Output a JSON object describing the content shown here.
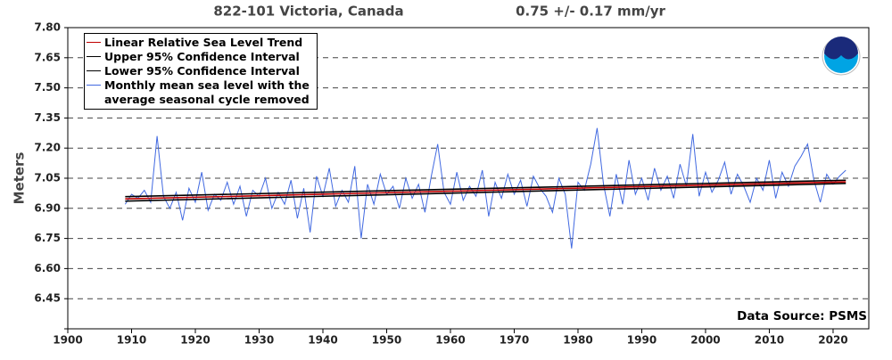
{
  "chart_data": {
    "type": "line",
    "title": "822-101 Victoria, Canada",
    "subtitle": "0.75 +/-  0.17 mm/yr",
    "y_label": "Meters",
    "annotation": "Data Source: PSMS",
    "xlim": [
      1900,
      2025.6
    ],
    "ylim": [
      6.3,
      7.8
    ],
    "xticks": [
      1900,
      1910,
      1920,
      1930,
      1940,
      1950,
      1960,
      1970,
      1980,
      1990,
      2000,
      2010,
      2020
    ],
    "yticks": [
      {
        "value": 6.3,
        "label": ""
      },
      {
        "value": 6.45,
        "label": "6.45"
      },
      {
        "value": 6.6,
        "label": "6.60"
      },
      {
        "value": 6.75,
        "label": "6.75"
      },
      {
        "value": 6.9,
        "label": "6.90"
      },
      {
        "value": 7.05,
        "label": "7.05"
      },
      {
        "value": 7.2,
        "label": "7.20"
      },
      {
        "value": 7.35,
        "label": "7.35"
      },
      {
        "value": 7.5,
        "label": "7.50"
      },
      {
        "value": 7.65,
        "label": "7.65"
      },
      {
        "value": 7.8,
        "label": "7.80"
      }
    ],
    "grid": true,
    "legend": "upper left",
    "series": [
      {
        "name": "Monthly mean sea level with the average seasonal cycle removed",
        "color": "#4169e1",
        "x": [
          1909,
          1910,
          1911,
          1912,
          1913,
          1914,
          1915,
          1916,
          1917,
          1918,
          1919,
          1920,
          1921,
          1922,
          1923,
          1924,
          1925,
          1926,
          1927,
          1928,
          1929,
          1930,
          1931,
          1932,
          1933,
          1934,
          1935,
          1936,
          1937,
          1938,
          1939,
          1940,
          1941,
          1942,
          1943,
          1944,
          1945,
          1946,
          1947,
          1948,
          1949,
          1950,
          1951,
          1952,
          1953,
          1954,
          1955,
          1956,
          1957,
          1958,
          1959,
          1960,
          1961,
          1962,
          1963,
          1964,
          1965,
          1966,
          1967,
          1968,
          1969,
          1970,
          1971,
          1972,
          1973,
          1974,
          1975,
          1976,
          1977,
          1978,
          1979,
          1980,
          1981,
          1982,
          1983,
          1984,
          1985,
          1986,
          1987,
          1988,
          1989,
          1990,
          1991,
          1992,
          1993,
          1994,
          1995,
          1996,
          1997,
          1998,
          1999,
          2000,
          2001,
          2002,
          2003,
          2004,
          2005,
          2006,
          2007,
          2008,
          2009,
          2010,
          2011,
          2012,
          2013,
          2014,
          2015,
          2016,
          2017,
          2018,
          2019,
          2020,
          2021,
          2022
        ],
        "values": [
          6.92,
          6.97,
          6.95,
          6.99,
          6.93,
          7.26,
          6.96,
          6.9,
          6.98,
          6.84,
          7.0,
          6.93,
          7.08,
          6.89,
          6.97,
          6.94,
          7.03,
          6.92,
          7.01,
          6.86,
          6.99,
          6.96,
          7.05,
          6.9,
          6.98,
          6.92,
          7.04,
          6.85,
          7.0,
          6.78,
          7.06,
          6.96,
          7.1,
          6.91,
          6.99,
          6.93,
          7.11,
          6.75,
          7.02,
          6.92,
          7.07,
          6.97,
          7.01,
          6.9,
          7.05,
          6.95,
          7.02,
          6.88,
          7.06,
          7.22,
          6.98,
          6.92,
          7.08,
          6.94,
          7.01,
          6.96,
          7.09,
          6.86,
          7.03,
          6.95,
          7.07,
          6.97,
          7.04,
          6.91,
          7.06,
          7.0,
          6.96,
          6.88,
          7.05,
          6.97,
          6.7,
          7.03,
          6.99,
          7.12,
          7.3,
          7.02,
          6.86,
          7.07,
          6.92,
          7.14,
          6.97,
          7.05,
          6.94,
          7.1,
          6.99,
          7.06,
          6.95,
          7.12,
          7.01,
          7.27,
          6.96,
          7.08,
          6.98,
          7.04,
          7.13,
          6.97,
          7.07,
          7.01,
          6.93,
          7.05,
          6.99,
          7.14,
          6.95,
          7.08,
          7.01,
          7.11,
          7.16,
          7.22,
          7.04,
          6.93,
          7.07,
          7.02,
          7.06,
          7.09
        ]
      },
      {
        "name": "Upper 95% Confidence Interval",
        "color": "#000000",
        "x": [
          1909,
          2022
        ],
        "values": [
          6.958,
          7.04
        ]
      },
      {
        "name": "Lower 95% Confidence Interval",
        "color": "#000000",
        "x": [
          1909,
          2022
        ],
        "values": [
          6.936,
          7.024
        ]
      },
      {
        "name": "Linear Relative Sea Level Trend",
        "color": "#c00000",
        "x": [
          1909,
          2022
        ],
        "values": [
          6.947,
          7.032
        ]
      }
    ],
    "legend_order": [
      3,
      1,
      2,
      0
    ]
  }
}
